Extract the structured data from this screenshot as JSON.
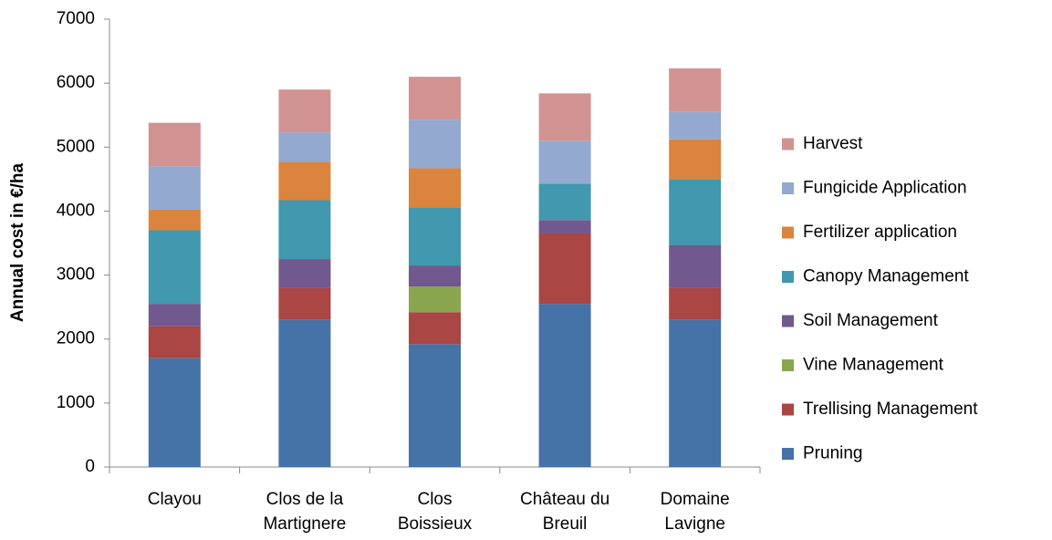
{
  "chart_data": {
    "type": "stacked-bar",
    "ylabel": "Annual cost in €/ha",
    "categories": [
      "Clayou",
      "Clos de la Martignere",
      "Clos Boissieux",
      "Château du Breuil",
      "Domaine Lavigne"
    ],
    "series": [
      {
        "name": "Pruning",
        "color": "#4572a7",
        "values": [
          1700,
          2300,
          1920,
          2550,
          2300
        ]
      },
      {
        "name": "Trellising Management",
        "color": "#aa4643",
        "values": [
          500,
          500,
          500,
          1100,
          500
        ]
      },
      {
        "name": "Vine Management",
        "color": "#89a54e",
        "values": [
          0,
          0,
          400,
          0,
          0
        ]
      },
      {
        "name": "Soil Management",
        "color": "#71588f",
        "values": [
          350,
          450,
          330,
          210,
          670
        ]
      },
      {
        "name": "Canopy Management",
        "color": "#4198af",
        "values": [
          1150,
          920,
          910,
          570,
          1030
        ]
      },
      {
        "name": "Fertilizer application",
        "color": "#db843d",
        "values": [
          320,
          600,
          610,
          0,
          620
        ]
      },
      {
        "name": "Fungicide Application",
        "color": "#93a9cf",
        "values": [
          680,
          460,
          760,
          670,
          430
        ]
      },
      {
        "name": "Harvest",
        "color": "#d19392",
        "values": [
          680,
          670,
          670,
          740,
          680
        ]
      }
    ],
    "ylim": [
      0,
      7000
    ],
    "yticks": [
      0,
      1000,
      2000,
      3000,
      4000,
      5000,
      6000,
      7000
    ],
    "grid": false,
    "legend": "right"
  }
}
